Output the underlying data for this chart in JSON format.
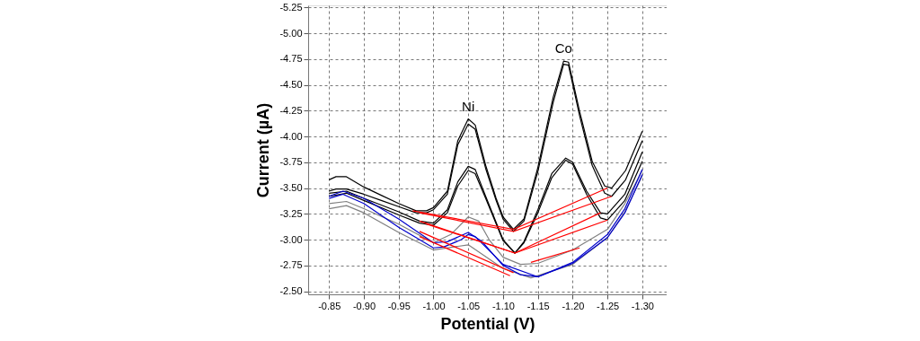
{
  "chart_data": {
    "type": "line",
    "xlabel": "Potential (V)",
    "ylabel": "Current (µA)",
    "xlim": [
      -0.82,
      -1.335
    ],
    "ylim": [
      -2.47,
      -5.27
    ],
    "xticks": [
      {
        "value": -0.85,
        "label": "-0.85"
      },
      {
        "value": -0.9,
        "label": "-0.90"
      },
      {
        "value": -0.95,
        "label": "-0.95"
      },
      {
        "value": -1.0,
        "label": "-1.00"
      },
      {
        "value": -1.05,
        "label": "-1.05"
      },
      {
        "value": -1.1,
        "label": "-1.10"
      },
      {
        "value": -1.15,
        "label": "-1.15"
      },
      {
        "value": -1.2,
        "label": "-1.20"
      },
      {
        "value": -1.25,
        "label": "-1.25"
      },
      {
        "value": -1.3,
        "label": "-1.30"
      }
    ],
    "yticks": [
      {
        "value": -5.25,
        "label": "-5.25"
      },
      {
        "value": -5.0,
        "label": "-5.00"
      },
      {
        "value": -4.75,
        "label": "-4.75"
      },
      {
        "value": -4.5,
        "label": "-4.50"
      },
      {
        "value": -4.25,
        "label": "-4.25"
      },
      {
        "value": -4.0,
        "label": "-4.00"
      },
      {
        "value": -3.75,
        "label": "-3.75"
      },
      {
        "value": -3.5,
        "label": "-3.50"
      },
      {
        "value": -3.25,
        "label": "-3.25"
      },
      {
        "value": -3.0,
        "label": "-3.00"
      },
      {
        "value": -2.75,
        "label": "-2.75"
      },
      {
        "value": -2.5,
        "label": "-2.50"
      }
    ],
    "grid": true,
    "line_style": "solid",
    "annotations": [
      {
        "text": "Ni",
        "x": -1.05,
        "y": -4.17
      },
      {
        "text": "Co",
        "x": -1.187,
        "y": -4.73
      }
    ],
    "series": [
      {
        "color": "#000000",
        "x": [
          -0.85,
          -0.86,
          -0.875,
          -0.9,
          -0.925,
          -0.95,
          -0.975,
          -0.99,
          -1.0,
          -1.02,
          -1.035,
          -1.05,
          -1.06,
          -1.075,
          -1.09,
          -1.1,
          -1.115,
          -1.13,
          -1.15,
          -1.172,
          -1.187,
          -1.194,
          -1.21,
          -1.228,
          -1.246,
          -1.256,
          -1.276,
          -1.3
        ],
        "values": [
          -3.58,
          -3.61,
          -3.61,
          -3.51,
          -3.43,
          -3.35,
          -3.28,
          -3.28,
          -3.31,
          -3.47,
          -3.96,
          -4.17,
          -4.11,
          -3.72,
          -3.4,
          -3.22,
          -3.1,
          -3.2,
          -3.7,
          -4.38,
          -4.73,
          -4.72,
          -4.24,
          -3.76,
          -3.52,
          -3.5,
          -3.67,
          -4.05
        ]
      },
      {
        "color": "#000000",
        "x": [
          -0.85,
          -0.86,
          -0.875,
          -0.9,
          -0.925,
          -0.95,
          -0.975,
          -0.99,
          -1.0,
          -1.02,
          -1.035,
          -1.05,
          -1.06,
          -1.075,
          -1.09,
          -1.1,
          -1.115,
          -1.13,
          -1.15,
          -1.172,
          -1.187,
          -1.194,
          -1.21,
          -1.228,
          -1.246,
          -1.256,
          -1.276,
          -1.3
        ],
        "values": [
          -3.47,
          -3.49,
          -3.49,
          -3.44,
          -3.38,
          -3.32,
          -3.26,
          -3.26,
          -3.29,
          -3.44,
          -3.92,
          -4.12,
          -4.07,
          -3.69,
          -3.38,
          -3.2,
          -3.08,
          -3.18,
          -3.66,
          -4.33,
          -4.7,
          -4.69,
          -4.2,
          -3.72,
          -3.45,
          -3.42,
          -3.58,
          -3.96
        ]
      },
      {
        "color": "#000000",
        "x": [
          -0.85,
          -0.875,
          -0.9,
          -0.95,
          -0.98,
          -1.0,
          -1.02,
          -1.035,
          -1.05,
          -1.06,
          -1.075,
          -1.1,
          -1.117,
          -1.13,
          -1.15,
          -1.17,
          -1.19,
          -1.2,
          -1.22,
          -1.24,
          -1.25,
          -1.275,
          -1.3
        ],
        "values": [
          -3.45,
          -3.47,
          -3.4,
          -3.27,
          -3.18,
          -3.16,
          -3.29,
          -3.56,
          -3.71,
          -3.68,
          -3.42,
          -3.0,
          -2.87,
          -2.98,
          -3.29,
          -3.64,
          -3.79,
          -3.75,
          -3.47,
          -3.26,
          -3.25,
          -3.44,
          -3.85
        ]
      },
      {
        "color": "#000000",
        "x": [
          -0.85,
          -0.875,
          -0.9,
          -0.95,
          -0.98,
          -1.0,
          -1.02,
          -1.035,
          -1.05,
          -1.06,
          -1.075,
          -1.1,
          -1.117,
          -1.13,
          -1.15,
          -1.17,
          -1.19,
          -1.2,
          -1.22,
          -1.24,
          -1.25,
          -1.275,
          -1.3
        ],
        "values": [
          -3.42,
          -3.45,
          -3.38,
          -3.24,
          -3.16,
          -3.14,
          -3.26,
          -3.52,
          -3.67,
          -3.64,
          -3.4,
          -2.99,
          -2.87,
          -2.97,
          -3.26,
          -3.6,
          -3.77,
          -3.73,
          -3.44,
          -3.21,
          -3.19,
          -3.38,
          -3.76
        ]
      },
      {
        "color": "#808080",
        "x": [
          -0.85,
          -0.875,
          -0.9,
          -0.95,
          -1.0,
          -1.025,
          -1.05,
          -1.065,
          -1.08,
          -1.1,
          -1.125,
          -1.15,
          -1.2,
          -1.25,
          -1.275,
          -1.3
        ],
        "values": [
          -3.35,
          -3.37,
          -3.3,
          -3.15,
          -2.97,
          -3.05,
          -3.22,
          -3.18,
          -3.0,
          -2.83,
          -2.76,
          -2.77,
          -2.9,
          -3.1,
          -3.35,
          -3.67
        ]
      },
      {
        "color": "#808080",
        "x": [
          -0.85,
          -0.875,
          -0.9,
          -0.95,
          -1.0,
          -1.05,
          -1.1,
          -1.14,
          -1.2,
          -1.25,
          -1.275,
          -1.3
        ],
        "values": [
          -3.3,
          -3.33,
          -3.26,
          -3.07,
          -2.9,
          -2.95,
          -2.72,
          -2.63,
          -2.76,
          -3.02,
          -3.27,
          -3.62
        ]
      },
      {
        "color": "#0000cc",
        "x": [
          -0.85,
          -0.87,
          -0.9,
          -0.95,
          -1.0,
          -1.02,
          -1.05,
          -1.07,
          -1.1,
          -1.125,
          -1.15,
          -1.2,
          -1.25,
          -1.275,
          -1.3
        ],
        "values": [
          -3.42,
          -3.47,
          -3.4,
          -3.2,
          -2.97,
          -2.98,
          -3.07,
          -2.98,
          -2.75,
          -2.66,
          -2.64,
          -2.78,
          -3.05,
          -3.3,
          -3.68
        ]
      },
      {
        "color": "#0000cc",
        "x": [
          -0.85,
          -0.87,
          -0.9,
          -0.95,
          -1.0,
          -1.015,
          -1.04,
          -1.05,
          -1.06,
          -1.1,
          -1.15,
          -1.2,
          -1.25,
          -1.275,
          -1.3
        ],
        "values": [
          -3.4,
          -3.44,
          -3.35,
          -3.12,
          -2.92,
          -2.93,
          -3.0,
          -3.05,
          -3.03,
          -2.76,
          -2.64,
          -2.77,
          -3.02,
          -3.26,
          -3.63
        ]
      },
      {
        "color": "#ff0000",
        "x": [
          -0.97,
          -1.115,
          -1.25
        ],
        "values": [
          -3.28,
          -3.1,
          -3.5
        ]
      },
      {
        "color": "#ff0000",
        "x": [
          -0.98,
          -1.115,
          -1.256
        ],
        "values": [
          -3.26,
          -3.08,
          -3.42
        ]
      },
      {
        "color": "#ff0000",
        "x": [
          -0.98,
          -1.117,
          -1.24
        ],
        "values": [
          -3.18,
          -2.87,
          -3.26
        ]
      },
      {
        "color": "#ff0000",
        "x": [
          -0.99,
          -1.117,
          -1.25
        ],
        "values": [
          -3.15,
          -2.87,
          -3.19
        ]
      },
      {
        "color": "#ff0000",
        "x": [
          -0.98,
          -1.115
        ],
        "values": [
          -3.08,
          -2.68
        ]
      },
      {
        "color": "#ff0000",
        "x": [
          -0.98,
          -1.11
        ],
        "values": [
          -3.03,
          -2.65
        ]
      },
      {
        "color": "#ff0000",
        "x": [
          -1.14,
          -1.21
        ],
        "values": [
          -2.78,
          -2.92
        ]
      }
    ]
  }
}
